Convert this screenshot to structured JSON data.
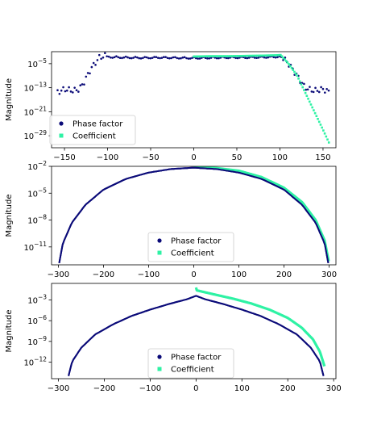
{
  "colors": {
    "phase": "#0a0a78",
    "coefficient": "#2ef2a4"
  },
  "chart_data": [
    {
      "type": "scatter",
      "ylabel": "Magnitude",
      "yscale": "log",
      "xlim": [
        -165,
        165
      ],
      "ylim_exp": [
        -33,
        -1
      ],
      "xticks": [
        -150,
        -100,
        -50,
        0,
        50,
        100,
        150
      ],
      "xtick_labels": [
        "−150",
        "−100",
        "−50",
        "0",
        "50",
        "100",
        "150"
      ],
      "yticks_exp": [
        -5,
        -13,
        -21,
        -29
      ],
      "ytick_labels": [
        "10^-5",
        "10^-13",
        "10^-21",
        "10^-29"
      ],
      "legend_position": "lower-left",
      "series": [
        {
          "name": "Phase factor",
          "marker": "circle",
          "x": [
            -158,
            -150,
            -140,
            -133,
            -128,
            -120,
            -110,
            -101,
            -95,
            -80,
            -60,
            -40,
            -20,
            0,
            20,
            40,
            60,
            80,
            95,
            101,
            110,
            120,
            128,
            133,
            140,
            150,
            158
          ],
          "log10_y": [
            -14.5,
            -13.5,
            -14.0,
            -13.5,
            -11.5,
            -7,
            -3,
            -2.2,
            -2.5,
            -2.6,
            -2.7,
            -2.6,
            -2.7,
            -2.8,
            -2.7,
            -2.6,
            -2.6,
            -2.5,
            -2.4,
            -2.3,
            -5,
            -9,
            -12.5,
            -13.5,
            -14.0,
            -13.5,
            -14.5
          ]
        },
        {
          "name": "Coefficient",
          "marker": "square",
          "x": [
            0,
            20,
            40,
            60,
            80,
            95,
            101,
            110,
            120,
            130,
            140,
            150,
            158
          ],
          "log10_y": [
            -2.6,
            -2.5,
            -2.5,
            -2.4,
            -2.3,
            -2.2,
            -2.1,
            -5,
            -9,
            -15,
            -21,
            -27,
            -32
          ]
        }
      ]
    },
    {
      "type": "line",
      "ylabel": "Magnitude",
      "yscale": "log",
      "xlim": [
        -315,
        315
      ],
      "ylim_exp": [
        -13,
        -2
      ],
      "xticks": [
        -300,
        -200,
        -100,
        0,
        100,
        200,
        300
      ],
      "xtick_labels": [
        "−300",
        "−200",
        "−100",
        "0",
        "100",
        "200",
        "300"
      ],
      "yticks_exp": [
        -2,
        -5,
        -8,
        -11
      ],
      "ytick_labels": [
        "10^-2",
        "10^-5",
        "10^-8",
        "10^-11"
      ],
      "legend_position": "lower-center",
      "series": [
        {
          "name": "Phase factor",
          "x": [
            -298,
            -290,
            -270,
            -240,
            -200,
            -150,
            -100,
            -50,
            0,
            50,
            100,
            150,
            200,
            240,
            270,
            290,
            298
          ],
          "log10_y": [
            -12.8,
            -10.6,
            -8.3,
            -6.3,
            -4.6,
            -3.4,
            -2.7,
            -2.3,
            -2.15,
            -2.3,
            -2.7,
            -3.4,
            -4.6,
            -6.3,
            -8.3,
            -10.6,
            -12.8
          ]
        },
        {
          "name": "Coefficient",
          "x": [
            0,
            50,
            100,
            150,
            200,
            240,
            270,
            290,
            299
          ],
          "log10_y": [
            -2.0,
            -2.2,
            -2.5,
            -3.2,
            -4.4,
            -6.0,
            -8.0,
            -10.3,
            -12.6
          ]
        }
      ]
    },
    {
      "type": "line",
      "ylabel": "Magnitude",
      "yscale": "log",
      "xlim": [
        -315,
        305
      ],
      "ylim_exp": [
        -14.4,
        -0.6
      ],
      "xticks": [
        -300,
        -200,
        -100,
        0,
        100,
        200,
        300
      ],
      "xtick_labels": [
        "−300",
        "−200",
        "−100",
        "0",
        "100",
        "200",
        "300"
      ],
      "yticks_exp": [
        -3,
        -6,
        -9,
        -12
      ],
      "ytick_labels": [
        "10^-3",
        "10^-6",
        "10^-9",
        "10^-12"
      ],
      "legend_position": "lower-center",
      "series": [
        {
          "name": "Phase factor",
          "x": [
            -278,
            -270,
            -250,
            -220,
            -180,
            -140,
            -100,
            -60,
            -20,
            0,
            20,
            60,
            100,
            140,
            180,
            220,
            250,
            270,
            278
          ],
          "log10_y": [
            -14.0,
            -11.9,
            -9.9,
            -8.0,
            -6.5,
            -5.3,
            -4.4,
            -3.6,
            -2.9,
            -2.4,
            -2.9,
            -3.6,
            -4.4,
            -5.3,
            -6.5,
            -8.0,
            -9.9,
            -11.9,
            -14.0
          ]
        },
        {
          "name": "Coefficient",
          "x": [
            0,
            1,
            40,
            80,
            120,
            160,
            200,
            230,
            255,
            270,
            280
          ],
          "log10_y": [
            -1.2,
            -1.6,
            -2.2,
            -2.8,
            -3.5,
            -4.4,
            -5.6,
            -7.0,
            -8.7,
            -10.5,
            -12.6
          ]
        }
      ]
    }
  ]
}
